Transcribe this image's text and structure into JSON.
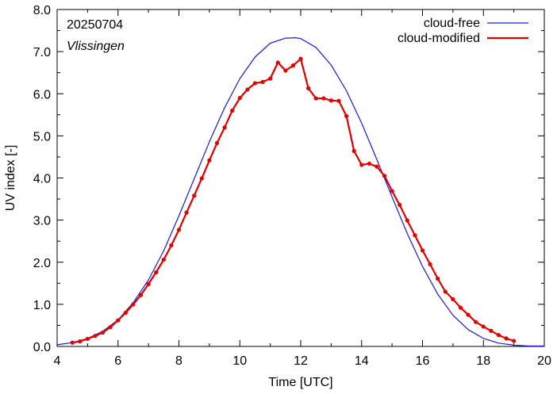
{
  "chart_data": {
    "type": "line",
    "title": "",
    "annotations": [
      "20250704",
      "Vlissingen"
    ],
    "xlabel": "Time  [UTC]",
    "ylabel": "UV index  [-]",
    "xlim": [
      4,
      20
    ],
    "ylim": [
      0,
      8
    ],
    "x_ticks": [
      4,
      6,
      8,
      10,
      12,
      14,
      16,
      18,
      20
    ],
    "x_tick_labels": [
      "4",
      "6",
      "8",
      "10",
      "12",
      "14",
      "16",
      "18",
      "20"
    ],
    "y_ticks": [
      0,
      1,
      2,
      3,
      4,
      5,
      6,
      7,
      8
    ],
    "y_tick_labels": [
      "0.0",
      "1.0",
      "2.0",
      "3.0",
      "4.0",
      "5.0",
      "6.0",
      "7.0",
      "8.0"
    ],
    "grid": false,
    "legend_position": "top-right",
    "series": [
      {
        "name": "cloud-free",
        "color": "#1a1adf",
        "style": "line",
        "x": [
          4.0,
          4.5,
          5.0,
          5.5,
          6.0,
          6.5,
          7.0,
          7.5,
          8.0,
          8.5,
          9.0,
          9.5,
          10.0,
          10.5,
          11.0,
          11.5,
          11.83,
          12.0,
          12.5,
          13.0,
          13.5,
          14.0,
          14.5,
          15.0,
          15.5,
          16.0,
          16.5,
          17.0,
          17.5,
          18.0,
          18.5,
          19.0,
          19.5,
          20.0
        ],
        "y": [
          0.04,
          0.09,
          0.19,
          0.36,
          0.63,
          1.04,
          1.58,
          2.27,
          3.1,
          3.98,
          4.86,
          5.67,
          6.36,
          6.87,
          7.2,
          7.32,
          7.33,
          7.31,
          7.1,
          6.68,
          6.07,
          5.3,
          4.44,
          3.55,
          2.68,
          1.9,
          1.24,
          0.74,
          0.4,
          0.19,
          0.08,
          0.03,
          0.01,
          0.01
        ]
      },
      {
        "name": "cloud-modified",
        "color": "#e00000",
        "style": "line+markers",
        "x": [
          4.5,
          4.75,
          5.0,
          5.25,
          5.5,
          5.75,
          6.0,
          6.25,
          6.5,
          6.75,
          7.0,
          7.25,
          7.5,
          7.75,
          8.0,
          8.25,
          8.5,
          8.75,
          9.0,
          9.25,
          9.5,
          9.75,
          10.0,
          10.25,
          10.5,
          10.75,
          11.0,
          11.25,
          11.5,
          11.75,
          12.0,
          12.25,
          12.5,
          12.75,
          13.0,
          13.25,
          13.5,
          13.75,
          14.0,
          14.25,
          14.5,
          14.75,
          15.0,
          15.25,
          15.5,
          15.75,
          16.0,
          16.25,
          16.5,
          16.75,
          17.0,
          17.25,
          17.5,
          17.75,
          18.0,
          18.25,
          18.5,
          18.75,
          19.0
        ],
        "y": [
          0.09,
          0.12,
          0.18,
          0.25,
          0.33,
          0.46,
          0.62,
          0.8,
          1.0,
          1.22,
          1.48,
          1.76,
          2.06,
          2.4,
          2.77,
          3.18,
          3.58,
          3.99,
          4.42,
          4.83,
          5.2,
          5.6,
          5.9,
          6.1,
          6.25,
          6.28,
          6.36,
          6.74,
          6.55,
          6.67,
          6.83,
          6.13,
          5.89,
          5.89,
          5.84,
          5.83,
          5.47,
          4.64,
          4.31,
          4.34,
          4.27,
          4.05,
          3.69,
          3.36,
          2.99,
          2.64,
          2.28,
          1.95,
          1.61,
          1.3,
          1.12,
          0.92,
          0.75,
          0.58,
          0.47,
          0.37,
          0.27,
          0.19,
          0.13
        ]
      }
    ]
  }
}
